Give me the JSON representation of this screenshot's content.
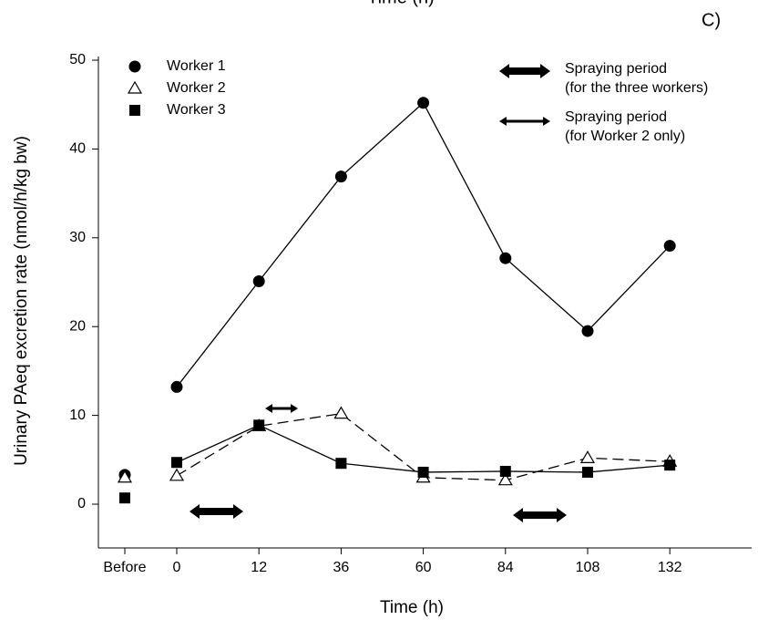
{
  "chart_data": {
    "type": "line",
    "cropped_top_label": "Time (h)",
    "panel_label": "C)",
    "x_label": "Time (h)",
    "y_label": "Urinary PAeq excretion rate (nmol/h/kg bw)",
    "categories": [
      "Before",
      "0",
      "12",
      "36",
      "60",
      "84",
      "108",
      "132"
    ],
    "ylim": [
      -5,
      50
    ],
    "yticks": [
      0,
      10,
      20,
      30,
      40,
      50
    ],
    "series": [
      {
        "name": "Worker 1",
        "color": "#000000",
        "marker": "circle",
        "dash": "solid",
        "values": [
          3.3,
          13.2,
          25.1,
          36.9,
          45.2,
          27.7,
          19.5,
          29.1
        ]
      },
      {
        "name": "Worker 2",
        "color": "#000000",
        "marker": "open-triangle",
        "dash": "dashed",
        "values": [
          3.0,
          3.2,
          8.8,
          10.2,
          3.0,
          2.7,
          5.2,
          4.8
        ]
      },
      {
        "name": "Worker 3",
        "color": "#000000",
        "marker": "square",
        "dash": "solid",
        "values": [
          0.7,
          4.7,
          8.9,
          4.6,
          3.6,
          3.7,
          3.6,
          4.4
        ]
      }
    ],
    "annotations": [
      {
        "lines": [
          "Spraying period",
          "(for the three workers)"
        ],
        "arrow": "thick"
      },
      {
        "lines": [
          "Spraying period",
          "(for Worker 2 only)"
        ],
        "arrow": "thin"
      }
    ]
  }
}
